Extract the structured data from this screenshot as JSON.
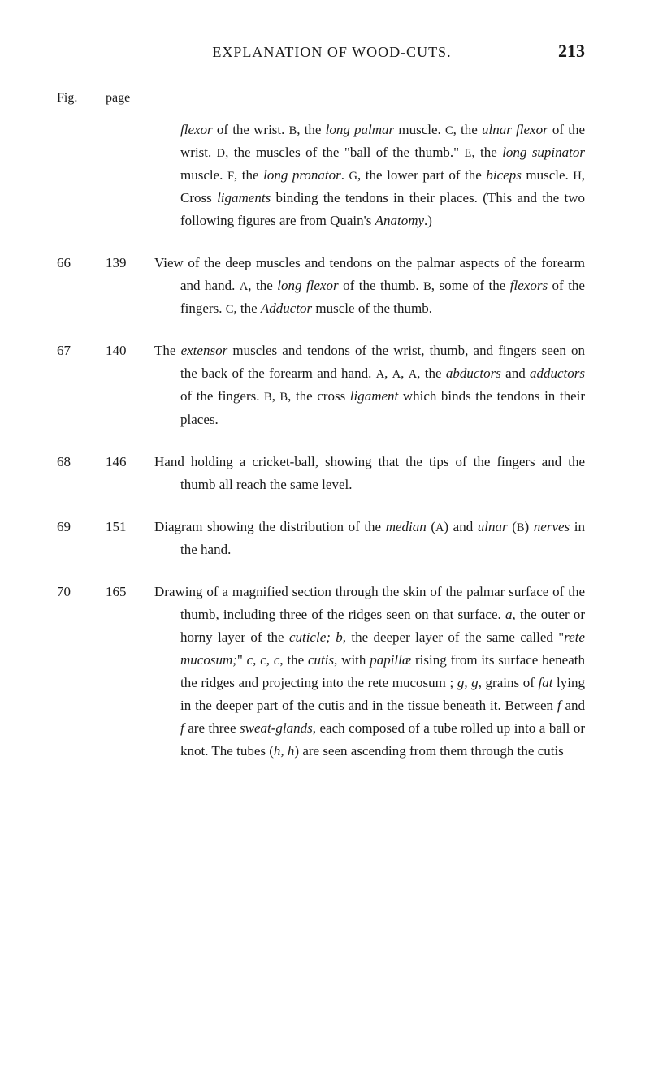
{
  "header": {
    "title": "EXPLANATION OF WOOD-CUTS.",
    "pageNumber": "213"
  },
  "columnHeaders": {
    "fig": "Fig.",
    "page": "page"
  },
  "entries": [
    {
      "fig": "",
      "page": "",
      "segments": [
        {
          "text": "flexor",
          "italic": true
        },
        {
          "text": " of the wrist. "
        },
        {
          "text": "B",
          "sc": true
        },
        {
          "text": ", the "
        },
        {
          "text": "long palmar",
          "italic": true
        },
        {
          "text": " muscle. "
        },
        {
          "text": "C",
          "sc": true
        },
        {
          "text": ", the "
        },
        {
          "text": "ulnar flexor",
          "italic": true
        },
        {
          "text": " of the wrist. "
        },
        {
          "text": "D",
          "sc": true
        },
        {
          "text": ", the muscles of the \"ball of the thumb.\" "
        },
        {
          "text": "E",
          "sc": true
        },
        {
          "text": ", the "
        },
        {
          "text": "long supinator",
          "italic": true
        },
        {
          "text": " muscle. "
        },
        {
          "text": "F",
          "sc": true
        },
        {
          "text": ", the "
        },
        {
          "text": "long pronator",
          "italic": true
        },
        {
          "text": ". "
        },
        {
          "text": "G",
          "sc": true
        },
        {
          "text": ", the lower part of the "
        },
        {
          "text": "biceps",
          "italic": true
        },
        {
          "text": " muscle. "
        },
        {
          "text": "H",
          "sc": true
        },
        {
          "text": ", Cross "
        },
        {
          "text": "ligaments",
          "italic": true
        },
        {
          "text": " binding the tendons in their places. (This and the two following figures are from Quain's "
        },
        {
          "text": "Anatomy",
          "italic": true
        },
        {
          "text": ".)"
        }
      ]
    },
    {
      "fig": "66",
      "page": "139",
      "segments": [
        {
          "text": "View of the deep muscles and tendons on the palmar aspects of the forearm and hand. "
        },
        {
          "text": "A",
          "sc": true
        },
        {
          "text": ", the "
        },
        {
          "text": "long flexor",
          "italic": true
        },
        {
          "text": " of the thumb. "
        },
        {
          "text": "B",
          "sc": true
        },
        {
          "text": ", some of the "
        },
        {
          "text": "flexors",
          "italic": true
        },
        {
          "text": " of the fingers. "
        },
        {
          "text": "C",
          "sc": true
        },
        {
          "text": ", the "
        },
        {
          "text": "Adductor",
          "italic": true
        },
        {
          "text": " muscle of the thumb."
        }
      ]
    },
    {
      "fig": "67",
      "page": "140",
      "segments": [
        {
          "text": "The "
        },
        {
          "text": "extensor",
          "italic": true
        },
        {
          "text": " muscles and tendons of the wrist, thumb, and fingers seen on the back of the forearm and hand. "
        },
        {
          "text": "A",
          "sc": true
        },
        {
          "text": ", "
        },
        {
          "text": "A",
          "sc": true
        },
        {
          "text": ", "
        },
        {
          "text": "A",
          "sc": true
        },
        {
          "text": ", the "
        },
        {
          "text": "abductors",
          "italic": true
        },
        {
          "text": " and "
        },
        {
          "text": "adductors",
          "italic": true
        },
        {
          "text": " of the fingers. "
        },
        {
          "text": "B",
          "sc": true
        },
        {
          "text": ", "
        },
        {
          "text": "B",
          "sc": true
        },
        {
          "text": ", the cross "
        },
        {
          "text": "ligament",
          "italic": true
        },
        {
          "text": " which binds the tendons in their places."
        }
      ]
    },
    {
      "fig": "68",
      "page": "146",
      "segments": [
        {
          "text": "Hand holding a cricket-ball, showing that the tips of the fingers and the thumb all reach the same level."
        }
      ]
    },
    {
      "fig": "69",
      "page": "151",
      "segments": [
        {
          "text": "Diagram showing the distribution of the "
        },
        {
          "text": "median",
          "italic": true
        },
        {
          "text": " ("
        },
        {
          "text": "A",
          "sc": true
        },
        {
          "text": ") and "
        },
        {
          "text": "ulnar",
          "italic": true
        },
        {
          "text": " ("
        },
        {
          "text": "B",
          "sc": true
        },
        {
          "text": ") "
        },
        {
          "text": "nerves",
          "italic": true
        },
        {
          "text": " in the hand."
        }
      ]
    },
    {
      "fig": "70",
      "page": "165",
      "segments": [
        {
          "text": "Drawing of a magnified section through the skin of the palmar surface of the thumb, including three of the ridges seen on that surface. "
        },
        {
          "text": "a",
          "italic": true
        },
        {
          "text": ", the outer or horny layer of the "
        },
        {
          "text": "cuticle;",
          "italic": true
        },
        {
          "text": " "
        },
        {
          "text": "b",
          "italic": true
        },
        {
          "text": ", the deeper layer of the same called \""
        },
        {
          "text": "rete mucosum;",
          "italic": true
        },
        {
          "text": "\" "
        },
        {
          "text": "c, c, c",
          "italic": true
        },
        {
          "text": ", the "
        },
        {
          "text": "cutis",
          "italic": true
        },
        {
          "text": ", with "
        },
        {
          "text": "papillæ",
          "italic": true
        },
        {
          "text": " rising from its surface beneath the ridges and projecting into the rete mucosum ; "
        },
        {
          "text": "g, g",
          "italic": true
        },
        {
          "text": ", grains of "
        },
        {
          "text": "fat",
          "italic": true
        },
        {
          "text": " lying in the deeper part of the cutis and in the tissue beneath it. Between "
        },
        {
          "text": "f",
          "italic": true
        },
        {
          "text": " and "
        },
        {
          "text": "f",
          "italic": true
        },
        {
          "text": " are three "
        },
        {
          "text": "sweat-glands",
          "italic": true
        },
        {
          "text": ", each composed of a tube rolled up into a ball or knot. The tubes ("
        },
        {
          "text": "h, h",
          "italic": true
        },
        {
          "text": ") are seen ascending from them through the cutis"
        }
      ]
    }
  ],
  "styles": {
    "background": "#ffffff",
    "textColor": "#1a1a1a",
    "fontSize": 17,
    "headerFontSize": 18,
    "pageNumFontSize": 22
  }
}
